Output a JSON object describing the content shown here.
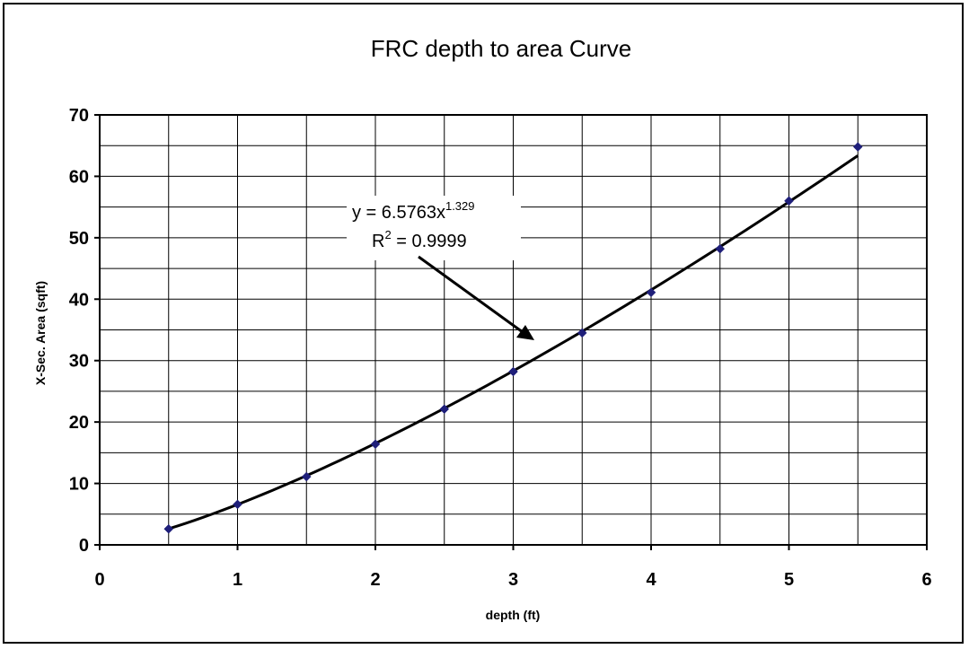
{
  "chart_data": {
    "type": "scatter",
    "title": "FRC depth to area Curve",
    "xlabel": "depth (ft)",
    "ylabel": "X-Sec. Area (sqft)",
    "xlim": [
      0,
      6
    ],
    "ylim": [
      0,
      70
    ],
    "x_ticks": [
      "0",
      "1",
      "2",
      "3",
      "4",
      "5",
      "6"
    ],
    "y_ticks": [
      "0",
      "10",
      "20",
      "30",
      "40",
      "50",
      "60",
      "70"
    ],
    "grid": true,
    "series": [
      {
        "x": [
          0.5,
          1.0,
          1.5,
          2.0,
          2.5,
          3.0,
          3.5,
          4.0,
          4.5,
          5.0,
          5.5
        ],
        "y": [
          2.6,
          6.6,
          11.1,
          16.4,
          22.1,
          28.2,
          34.5,
          41.1,
          48.2,
          56.0,
          64.8
        ],
        "color": "#1f1f7a"
      }
    ],
    "trendline": {
      "type": "power",
      "a": 6.5763,
      "b": 1.329,
      "color": "#000000"
    },
    "annotation": {
      "equation_base": "y = 6.5763x",
      "equation_exponent": "1.329",
      "r2_base": "R",
      "r2_exponent": "2",
      "r2_value": " = 0.9999"
    }
  }
}
